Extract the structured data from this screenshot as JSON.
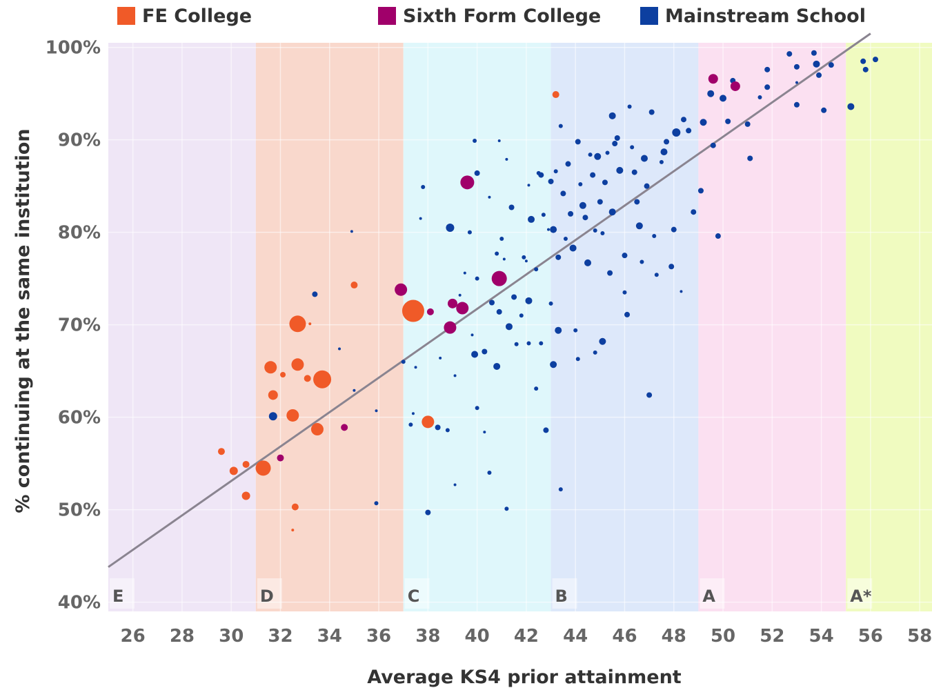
{
  "legend": [
    {
      "label": "FE College",
      "color": "#f05a28"
    },
    {
      "label": "Sixth Form College",
      "color": "#a0006a"
    },
    {
      "label": "Mainstream School",
      "color": "#0d3fa0"
    }
  ],
  "chart_data": {
    "type": "scatter",
    "title": "",
    "xlabel": "Average KS4 prior attainment",
    "ylabel": "% continuing at the same institution",
    "xlim": [
      25,
      58.5
    ],
    "ylim": [
      39,
      100.5
    ],
    "x_ticks": [
      26,
      28,
      30,
      32,
      34,
      36,
      38,
      40,
      42,
      44,
      46,
      48,
      50,
      52,
      54,
      56,
      58
    ],
    "y_ticks": [
      {
        "value": 40,
        "label": "40%"
      },
      {
        "value": 50,
        "label": "50%"
      },
      {
        "value": 60,
        "label": "60%"
      },
      {
        "value": 70,
        "label": "70%"
      },
      {
        "value": 80,
        "label": "80%"
      },
      {
        "value": 90,
        "label": "90%"
      },
      {
        "value": 100,
        "label": "100%"
      }
    ],
    "grade_bands": [
      {
        "label": "E",
        "from": 25,
        "to": 31,
        "color": "#efe6f6"
      },
      {
        "label": "D",
        "from": 31,
        "to": 37,
        "color": "#f9d8cc"
      },
      {
        "label": "C",
        "from": 37,
        "to": 43,
        "color": "#dff7fb"
      },
      {
        "label": "B",
        "from": 43,
        "to": 49,
        "color": "#dde8fa"
      },
      {
        "label": "A",
        "from": 49,
        "to": 55,
        "color": "#fbe0f1"
      },
      {
        "label": "A*",
        "from": 55,
        "to": 58.5,
        "color": "#f0fbc0"
      }
    ],
    "trend_line": {
      "x": [
        25,
        56
      ],
      "y": [
        43.8,
        101.5
      ],
      "color": "#8a8490"
    },
    "series": [
      {
        "name": "FE College",
        "color": "#f05a28",
        "points": [
          [
            29.6,
            56.3,
            5
          ],
          [
            30.1,
            54.2,
            6
          ],
          [
            30.6,
            54.9,
            5
          ],
          [
            30.6,
            51.5,
            6
          ],
          [
            31.3,
            54.5,
            11
          ],
          [
            31.6,
            65.4,
            9
          ],
          [
            31.7,
            62.4,
            7
          ],
          [
            32.1,
            64.6,
            4
          ],
          [
            32.5,
            60.2,
            9
          ],
          [
            32.6,
            50.3,
            5
          ],
          [
            32.5,
            47.8,
            2
          ],
          [
            32.7,
            65.7,
            9
          ],
          [
            32.7,
            70.1,
            12
          ],
          [
            33.1,
            64.2,
            5
          ],
          [
            33.2,
            70.1,
            2
          ],
          [
            33.5,
            58.7,
            9
          ],
          [
            33.7,
            64.1,
            13
          ],
          [
            35.0,
            74.3,
            5
          ],
          [
            37.4,
            71.5,
            16
          ],
          [
            38.0,
            59.5,
            9
          ],
          [
            43.2,
            94.9,
            5
          ]
        ]
      },
      {
        "name": "Sixth Form College",
        "color": "#a0006a",
        "points": [
          [
            32.0,
            55.6,
            5
          ],
          [
            34.6,
            58.9,
            5
          ],
          [
            36.9,
            73.8,
            9
          ],
          [
            38.1,
            71.4,
            5
          ],
          [
            38.9,
            69.7,
            9
          ],
          [
            39.0,
            72.3,
            7
          ],
          [
            39.4,
            71.8,
            9
          ],
          [
            39.6,
            85.4,
            10
          ],
          [
            40.9,
            75.0,
            11
          ],
          [
            49.6,
            96.6,
            7
          ],
          [
            50.5,
            95.8,
            7
          ]
        ]
      },
      {
        "name": "Mainstream School",
        "color": "#0d3fa0",
        "points": [
          [
            31.7,
            60.1,
            6
          ],
          [
            33.4,
            73.3,
            4
          ],
          [
            34.4,
            67.4,
            2
          ],
          [
            34.9,
            80.1,
            2
          ],
          [
            35.0,
            62.9,
            2
          ],
          [
            35.9,
            60.7,
            2
          ],
          [
            35.9,
            50.7,
            3
          ],
          [
            37.0,
            66.0,
            3
          ],
          [
            37.3,
            59.2,
            3
          ],
          [
            37.4,
            60.4,
            2
          ],
          [
            37.5,
            65.4,
            2
          ],
          [
            37.7,
            81.5,
            2
          ],
          [
            37.8,
            84.9,
            3
          ],
          [
            38.0,
            49.7,
            4
          ],
          [
            38.4,
            58.9,
            4
          ],
          [
            38.5,
            66.4,
            2
          ],
          [
            38.8,
            58.6,
            3
          ],
          [
            38.9,
            80.5,
            6
          ],
          [
            39.1,
            52.7,
            2
          ],
          [
            39.1,
            64.5,
            2
          ],
          [
            39.3,
            73.2,
            2
          ],
          [
            39.5,
            75.6,
            2
          ],
          [
            39.7,
            80.0,
            3
          ],
          [
            39.8,
            68.9,
            2
          ],
          [
            39.9,
            89.9,
            3
          ],
          [
            39.9,
            66.8,
            5
          ],
          [
            40.0,
            75.0,
            3
          ],
          [
            40.0,
            61.0,
            3
          ],
          [
            40.0,
            86.4,
            4
          ],
          [
            40.3,
            58.4,
            2
          ],
          [
            40.3,
            67.1,
            4
          ],
          [
            40.5,
            83.8,
            2
          ],
          [
            40.5,
            54.0,
            3
          ],
          [
            40.6,
            72.4,
            4
          ],
          [
            40.8,
            65.5,
            5
          ],
          [
            40.9,
            89.9,
            2
          ],
          [
            40.8,
            77.7,
            3
          ],
          [
            40.9,
            71.4,
            4
          ],
          [
            41.0,
            79.3,
            3
          ],
          [
            41.1,
            77.1,
            2
          ],
          [
            41.2,
            50.1,
            3
          ],
          [
            41.2,
            87.9,
            2
          ],
          [
            41.3,
            69.8,
            5
          ],
          [
            41.4,
            82.7,
            4
          ],
          [
            41.5,
            73.0,
            4
          ],
          [
            41.6,
            67.9,
            3
          ],
          [
            41.8,
            71.0,
            3
          ],
          [
            41.9,
            77.3,
            3
          ],
          [
            42.0,
            76.9,
            2
          ],
          [
            42.1,
            85.1,
            2
          ],
          [
            42.1,
            68.0,
            3
          ],
          [
            42.1,
            72.6,
            5
          ],
          [
            42.2,
            81.4,
            5
          ],
          [
            42.4,
            76.0,
            3
          ],
          [
            42.4,
            63.1,
            3
          ],
          [
            42.5,
            86.4,
            3
          ],
          [
            42.6,
            86.2,
            4
          ],
          [
            42.6,
            68.0,
            3
          ],
          [
            42.7,
            81.9,
            3
          ],
          [
            42.8,
            58.6,
            4
          ],
          [
            42.9,
            80.3,
            2
          ],
          [
            43.0,
            85.5,
            4
          ],
          [
            43.0,
            72.3,
            3
          ],
          [
            43.1,
            65.7,
            5
          ],
          [
            43.1,
            80.3,
            5
          ],
          [
            43.2,
            86.6,
            3
          ],
          [
            43.3,
            77.3,
            4
          ],
          [
            43.3,
            69.4,
            5
          ],
          [
            43.4,
            91.5,
            3
          ],
          [
            43.4,
            52.2,
            3
          ],
          [
            43.5,
            84.2,
            4
          ],
          [
            43.6,
            79.3,
            3
          ],
          [
            43.7,
            87.4,
            4
          ],
          [
            43.8,
            82.0,
            4
          ],
          [
            43.9,
            78.3,
            5
          ],
          [
            44.0,
            69.4,
            3
          ],
          [
            44.1,
            66.3,
            3
          ],
          [
            44.1,
            89.8,
            4
          ],
          [
            44.2,
            85.2,
            3
          ],
          [
            44.3,
            82.9,
            5
          ],
          [
            44.4,
            81.6,
            4
          ],
          [
            44.5,
            76.7,
            5
          ],
          [
            44.6,
            88.4,
            3
          ],
          [
            44.7,
            86.2,
            4
          ],
          [
            44.8,
            67.0,
            3
          ],
          [
            44.8,
            80.2,
            3
          ],
          [
            44.9,
            88.2,
            5
          ],
          [
            45.0,
            83.3,
            4
          ],
          [
            45.1,
            79.9,
            3
          ],
          [
            45.1,
            68.2,
            5
          ],
          [
            45.2,
            85.4,
            4
          ],
          [
            45.3,
            88.6,
            3
          ],
          [
            45.4,
            75.6,
            4
          ],
          [
            45.5,
            92.6,
            5
          ],
          [
            45.5,
            82.2,
            5
          ],
          [
            45.6,
            89.6,
            4
          ],
          [
            45.7,
            90.2,
            4
          ],
          [
            45.8,
            86.7,
            5
          ],
          [
            46.0,
            77.5,
            4
          ],
          [
            46.0,
            73.5,
            3
          ],
          [
            46.1,
            71.1,
            4
          ],
          [
            46.2,
            93.6,
            3
          ],
          [
            46.3,
            89.2,
            3
          ],
          [
            46.4,
            86.5,
            4
          ],
          [
            46.5,
            83.3,
            4
          ],
          [
            46.6,
            80.7,
            5
          ],
          [
            46.7,
            76.8,
            3
          ],
          [
            46.8,
            88.0,
            5
          ],
          [
            46.9,
            85.0,
            4
          ],
          [
            47.0,
            62.4,
            4
          ],
          [
            47.1,
            93.0,
            4
          ],
          [
            47.2,
            79.6,
            3
          ],
          [
            47.3,
            75.4,
            3
          ],
          [
            47.5,
            87.6,
            3
          ],
          [
            47.6,
            88.7,
            5
          ],
          [
            47.7,
            89.8,
            4
          ],
          [
            47.9,
            76.3,
            4
          ],
          [
            48.0,
            80.3,
            4
          ],
          [
            48.1,
            90.8,
            6
          ],
          [
            48.3,
            73.6,
            2
          ],
          [
            48.4,
            92.2,
            4
          ],
          [
            48.6,
            91.0,
            4
          ],
          [
            48.8,
            82.2,
            4
          ],
          [
            49.1,
            84.5,
            4
          ],
          [
            49.2,
            91.9,
            5
          ],
          [
            49.5,
            95.0,
            5
          ],
          [
            49.6,
            89.4,
            4
          ],
          [
            49.8,
            79.6,
            4
          ],
          [
            50.0,
            94.5,
            5
          ],
          [
            50.2,
            92.0,
            4
          ],
          [
            50.4,
            96.4,
            4
          ],
          [
            51.0,
            91.7,
            4
          ],
          [
            51.1,
            88.0,
            4
          ],
          [
            51.5,
            94.6,
            3
          ],
          [
            51.8,
            95.7,
            4
          ],
          [
            51.8,
            97.6,
            4
          ],
          [
            52.7,
            99.3,
            4
          ],
          [
            53.0,
            97.9,
            4
          ],
          [
            53.0,
            93.8,
            4
          ],
          [
            53.0,
            96.2,
            2
          ],
          [
            53.7,
            99.4,
            4
          ],
          [
            53.8,
            98.2,
            5
          ],
          [
            53.9,
            97.0,
            4
          ],
          [
            54.1,
            93.2,
            4
          ],
          [
            54.4,
            98.1,
            4
          ],
          [
            55.2,
            93.6,
            5
          ],
          [
            55.7,
            98.5,
            4
          ],
          [
            55.8,
            97.6,
            4
          ],
          [
            56.2,
            98.7,
            4
          ]
        ]
      }
    ]
  }
}
